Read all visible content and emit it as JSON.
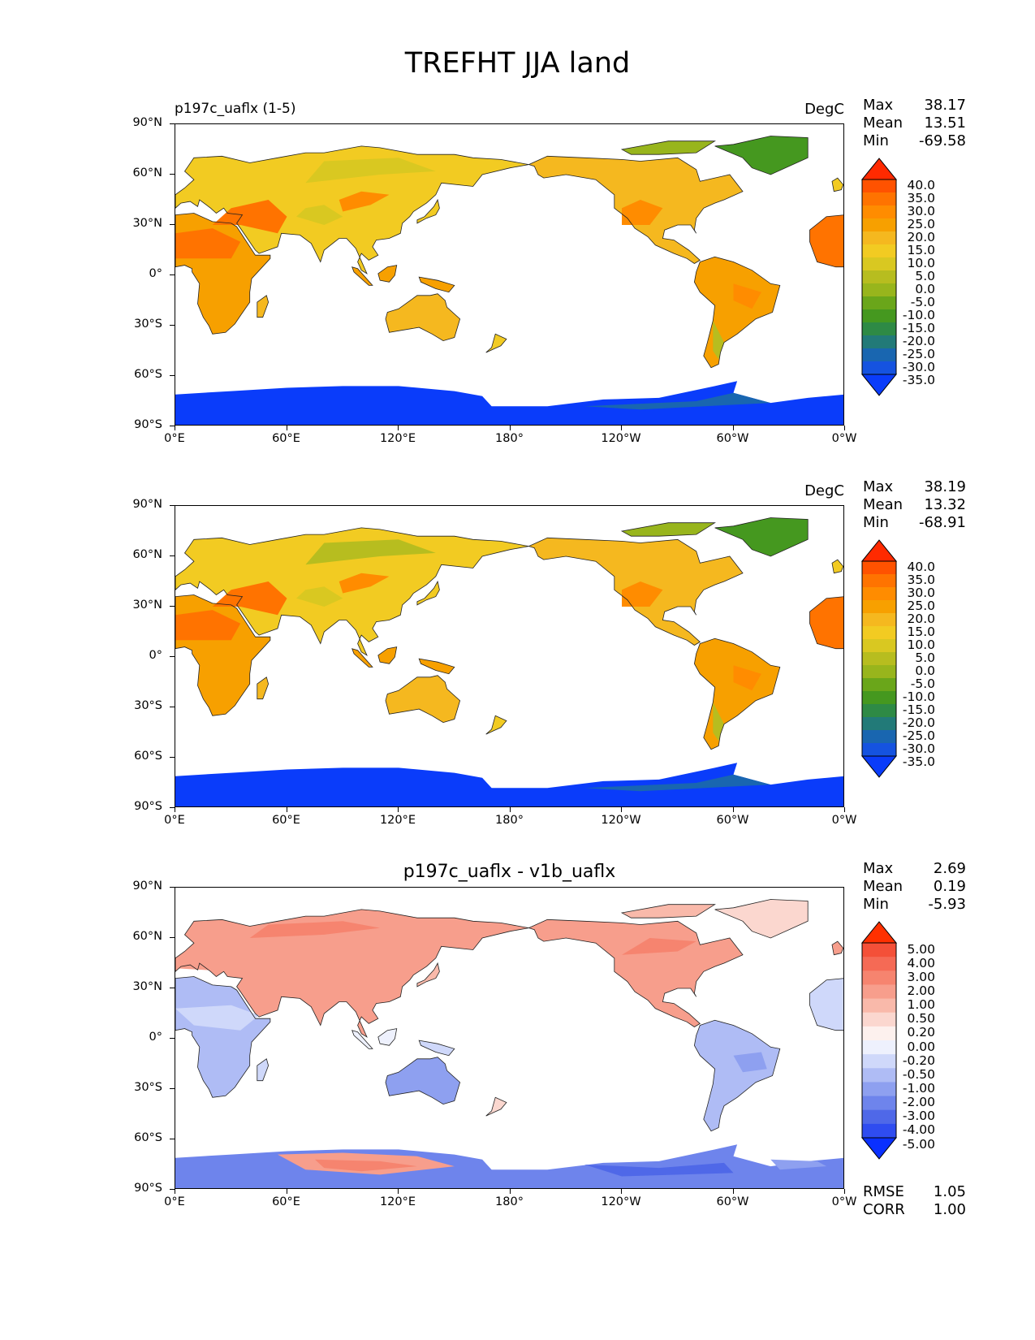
{
  "title": "TREFHT JJA land",
  "x_ticks": [
    "0°E",
    "60°E",
    "120°E",
    "180°",
    "120°W",
    "60°W",
    "0°W"
  ],
  "y_ticks": [
    "90°N",
    "60°N",
    "30°N",
    "0°",
    "30°S",
    "60°S",
    "90°S"
  ],
  "stat_labels": {
    "max": "Max",
    "mean": "Mean",
    "min": "Min",
    "rmse": "RMSE",
    "corr": "CORR"
  },
  "panels": [
    {
      "name": "test",
      "left_title": "p197c_uaflx (1-5)",
      "center_title": "",
      "units": "DegC",
      "max": "38.17",
      "mean": "13.51",
      "min": "-69.58",
      "colorbar_levels": [
        "40.0",
        "35.0",
        "30.0",
        "25.0",
        "20.0",
        "15.0",
        "10.0",
        "5.0",
        "0.0",
        "-5.0",
        "-10.0",
        "-15.0",
        "-20.0",
        "-25.0",
        "-30.0",
        "-35.0"
      ],
      "colorbar_colors": [
        "#ff2a00",
        "#ff5200",
        "#ff7300",
        "#ff8c00",
        "#f7a000",
        "#f5b81f",
        "#f2cb22",
        "#d9c821",
        "#b7bd1f",
        "#98b51c",
        "#6aa61a",
        "#45981f",
        "#2e8a45",
        "#227a78",
        "#1966b0",
        "#1553e0",
        "#0a3cfa"
      ]
    },
    {
      "name": "reference",
      "left_title": "",
      "center_title": "",
      "units": "DegC",
      "max": "38.19",
      "mean": "13.32",
      "min": "-68.91",
      "colorbar_levels": [
        "40.0",
        "35.0",
        "30.0",
        "25.0",
        "20.0",
        "15.0",
        "10.0",
        "5.0",
        "0.0",
        "-5.0",
        "-10.0",
        "-15.0",
        "-20.0",
        "-25.0",
        "-30.0",
        "-35.0"
      ],
      "colorbar_colors": [
        "#ff2a00",
        "#ff5200",
        "#ff7300",
        "#ff8c00",
        "#f7a000",
        "#f5b81f",
        "#f2cb22",
        "#d9c821",
        "#b7bd1f",
        "#98b51c",
        "#6aa61a",
        "#45981f",
        "#2e8a45",
        "#227a78",
        "#1966b0",
        "#1553e0",
        "#0a3cfa"
      ]
    },
    {
      "name": "difference",
      "left_title": "",
      "center_title": "p197c_uaflx - v1b_uaflx",
      "units": "",
      "max": "2.69",
      "mean": "0.19",
      "min": "-5.93",
      "rmse": "1.05",
      "corr": "1.00",
      "colorbar_levels": [
        "5.00",
        "4.00",
        "3.00",
        "2.00",
        "1.00",
        "0.50",
        "0.20",
        "0.00",
        "-0.20",
        "-0.50",
        "-1.00",
        "-2.00",
        "-3.00",
        "-4.00",
        "-5.00"
      ],
      "colorbar_colors": [
        "#ff3000",
        "#f45038",
        "#f56a55",
        "#f6846f",
        "#f79e8c",
        "#f9b9aa",
        "#fbd7cf",
        "#fdf1ee",
        "#eef1fd",
        "#cfd8fa",
        "#afbcf5",
        "#8ea0f0",
        "#6e84ec",
        "#4f68e8",
        "#2f4cf0",
        "#0a30ff"
      ]
    }
  ]
}
